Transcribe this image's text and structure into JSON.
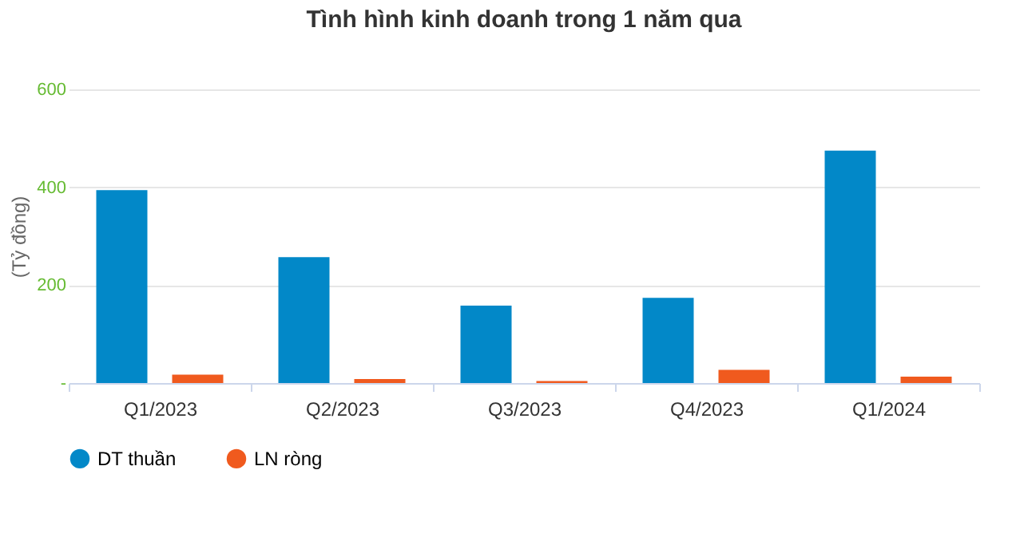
{
  "chart_data": {
    "type": "bar",
    "title": "Tình hình kinh doanh trong 1 năm qua",
    "ylabel": "(Tỷ đồng)",
    "categories": [
      "Q1/2023",
      "Q2/2023",
      "Q3/2023",
      "Q4/2023",
      "Q1/2024"
    ],
    "series": [
      {
        "name": "DT thuần",
        "color": "#0288c8",
        "values": [
          394,
          257,
          158,
          174,
          475
        ]
      },
      {
        "name": "LN ròng",
        "color": "#f05a1e",
        "values": [
          17,
          8,
          4,
          27,
          13
        ]
      }
    ],
    "ylim": [
      0,
      600
    ],
    "yticks": [
      {
        "value": 0,
        "label": "-"
      },
      200,
      400,
      600
    ],
    "grid": "y",
    "legend": "bottom"
  }
}
